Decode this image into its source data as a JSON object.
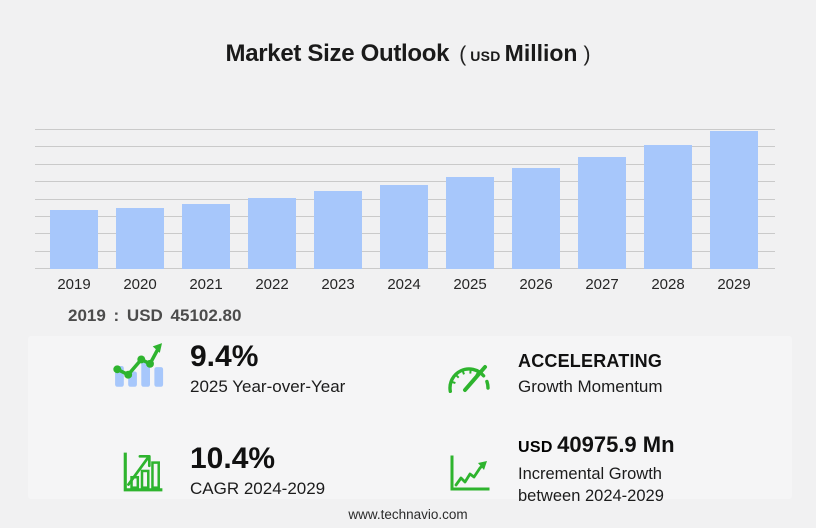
{
  "title": {
    "main": "Market Size Outlook",
    "open": "(",
    "currency": "USD",
    "unit": "Million",
    "close": ")"
  },
  "chart_annotation": "2019 : USD 45102.80",
  "footer": "www.technavio.com",
  "chart_data": {
    "type": "bar",
    "title": "Market Size Outlook (USD Million)",
    "categories": [
      "2019",
      "2020",
      "2021",
      "2022",
      "2023",
      "2024",
      "2025",
      "2026",
      "2027",
      "2028",
      "2029"
    ],
    "values": [
      45102.8,
      46200,
      49600,
      54100,
      59000,
      63960,
      69970,
      76500,
      84800,
      94400,
      104935
    ],
    "xlabel": "",
    "ylabel": "",
    "ylim": [
      0,
      113000
    ],
    "grid": true,
    "gridline_count": 9,
    "legend": "none",
    "bar_color": "#a7c7fb"
  },
  "stats": [
    {
      "icon": "bar-chart-trend-icon",
      "value": "9.4%",
      "label": "2025 Year-over-Year"
    },
    {
      "icon": "speedometer-icon",
      "value": "ACCELERATING",
      "label": "Growth Momentum"
    },
    {
      "icon": "growth-bars-arrow-icon",
      "value": "10.4%",
      "label": "CAGR 2024-2029"
    },
    {
      "icon": "line-graph-arrow-icon",
      "value_prefix": "USD",
      "value": "40975.9 Mn",
      "label_line1": "Incremental Growth",
      "label_line2": "between 2024-2029"
    }
  ],
  "colors": {
    "background": "#f1f1f2",
    "panel": "#f5f5f6",
    "bar_blue": "#a7c7fb",
    "accent_green": "#2eb42e",
    "gridline": "#cacaca"
  }
}
